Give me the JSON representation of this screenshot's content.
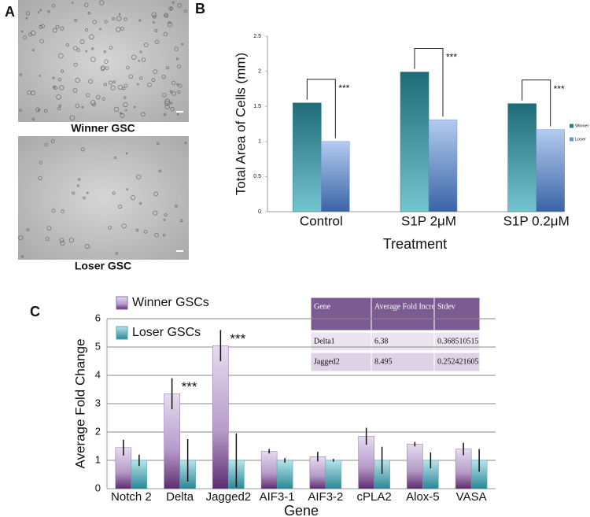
{
  "figure": {
    "panel_labels": [
      "A",
      "B",
      "C"
    ],
    "images": [
      {
        "caption": "Winner GSC"
      },
      {
        "caption": "Loser GSC"
      }
    ]
  },
  "chart_data": [
    {
      "type": "bar",
      "y_label": "Total Area of Cells (mm)",
      "x_label": "Treatment",
      "categories": [
        "Control",
        "S1P 2μM",
        "S1P 0.2μM"
      ],
      "series": [
        {
          "name": "Winner",
          "color": "#2a7a86",
          "values": [
            1.55,
            1.99,
            1.54
          ]
        },
        {
          "name": "Loser",
          "color": "#6f95d0",
          "values": [
            1.0,
            1.31,
            1.17
          ]
        }
      ],
      "ylim": [
        0,
        2.5
      ],
      "yticks": [
        0,
        0.5,
        1,
        1.5,
        2,
        2.5
      ],
      "grid": false,
      "legend": "right",
      "annotations": [
        {
          "text": "***",
          "category": 0
        },
        {
          "text": "***",
          "category": 1
        },
        {
          "text": "***",
          "category": 2
        }
      ]
    },
    {
      "type": "bar",
      "y_label": "Average Fold Change",
      "x_label": "Gene",
      "categories": [
        "Notch 2",
        "Delta",
        "Jagged2",
        "AIF3-1",
        "AIF3-2",
        "cPLA2",
        "Alox-5",
        "VASA"
      ],
      "series": [
        {
          "name": "Winner GSCs",
          "color": "#8c6aa6",
          "values": [
            1.45,
            3.35,
            5.05,
            1.32,
            1.13,
            1.85,
            1.57,
            1.4
          ],
          "errors": [
            0.28,
            0.55,
            0.55,
            0.08,
            0.17,
            0.3,
            0.08,
            0.22
          ]
        },
        {
          "name": "Loser GSCs",
          "color": "#4fa8b6",
          "values": [
            1,
            1,
            1,
            1,
            1,
            1,
            1,
            1
          ],
          "errors": [
            0.2,
            0.75,
            0.95,
            0.08,
            0.05,
            0.48,
            0.28,
            0.4
          ]
        }
      ],
      "ylim": [
        0,
        6
      ],
      "yticks": [
        0,
        1,
        2,
        3,
        4,
        5,
        6
      ],
      "grid": true,
      "legend": "top-left",
      "annotations": [
        {
          "text": "***",
          "category": 1
        },
        {
          "text": "***",
          "category": 2
        }
      ]
    }
  ],
  "table": {
    "header": [
      "Gene",
      "Average Fold Increase",
      "Stdev"
    ],
    "rows": [
      [
        "Delta1",
        "6.38",
        "0.368510515"
      ],
      [
        "Jagged2",
        "8.495",
        "0.252421605"
      ]
    ]
  }
}
